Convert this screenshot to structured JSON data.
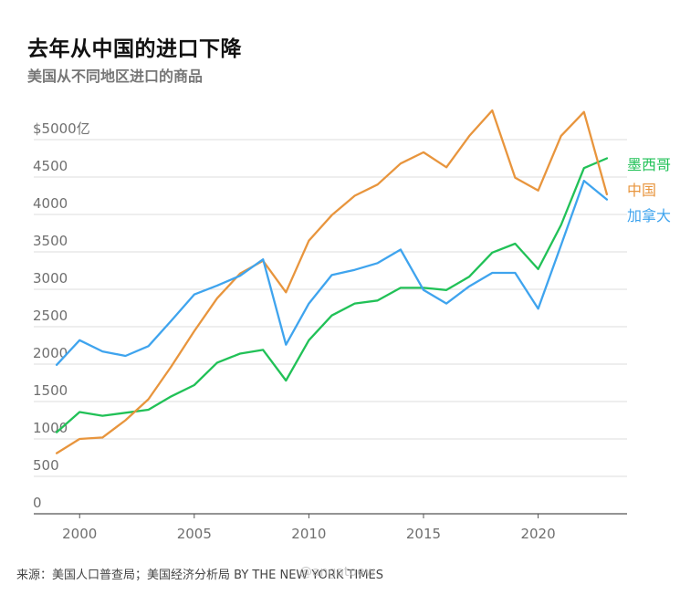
{
  "title": "去年从中国的进口下降",
  "subtitle": "美国从不同地区进口的商品",
  "source": "来源：美国人口普查局；美国经济分析局 BY THE NEW YORK TIMES",
  "watermark": "@angatoew",
  "chart_data": {
    "type": "line",
    "title": "去年从中国的进口下降",
    "subtitle": "美国从不同地区进口的商品",
    "xlabel": "",
    "ylabel": "",
    "xlim": [
      1998,
      2023.8
    ],
    "ylim": [
      0,
      5000
    ],
    "x_ticks": [
      2000,
      2005,
      2010,
      2015,
      2020
    ],
    "y_ticks": [
      0,
      500,
      1000,
      1500,
      2000,
      2500,
      3000,
      3500,
      4000,
      4500,
      5000
    ],
    "y_tick_labels": [
      "0",
      "500",
      "1000",
      "1500",
      "2000",
      "2500",
      "3000",
      "3500",
      "4000",
      "4500",
      "$5000亿"
    ],
    "grid": true,
    "legend": "right, inline labels at line ends",
    "x": [
      1999,
      2000,
      2001,
      2002,
      2003,
      2004,
      2005,
      2006,
      2007,
      2008,
      2009,
      2010,
      2011,
      2012,
      2013,
      2014,
      2015,
      2016,
      2017,
      2018,
      2019,
      2020,
      2021,
      2022,
      2023
    ],
    "series": [
      {
        "name": "墨西哥",
        "color": "#21c157",
        "values": [
          1090,
          1360,
          1310,
          1350,
          1390,
          1570,
          1720,
          2020,
          2140,
          2190,
          1780,
          2320,
          2650,
          2810,
          2850,
          3020,
          3020,
          2990,
          3170,
          3490,
          3610,
          3270,
          3860,
          4620,
          4750
        ]
      },
      {
        "name": "中国",
        "color": "#e8953d",
        "values": [
          810,
          1000,
          1020,
          1250,
          1530,
          1970,
          2440,
          2880,
          3210,
          3380,
          2960,
          3650,
          3990,
          4250,
          4400,
          4680,
          4830,
          4630,
          5050,
          5390,
          4490,
          4320,
          5050,
          5370,
          4270
        ]
      },
      {
        "name": "加拿大",
        "color": "#3fa4ee",
        "values": [
          1990,
          2320,
          2170,
          2110,
          2240,
          2580,
          2930,
          3050,
          3180,
          3400,
          2260,
          2810,
          3190,
          3260,
          3350,
          3530,
          2990,
          2810,
          3040,
          3220,
          3220,
          2740,
          3590,
          4450,
          4200
        ]
      }
    ]
  }
}
